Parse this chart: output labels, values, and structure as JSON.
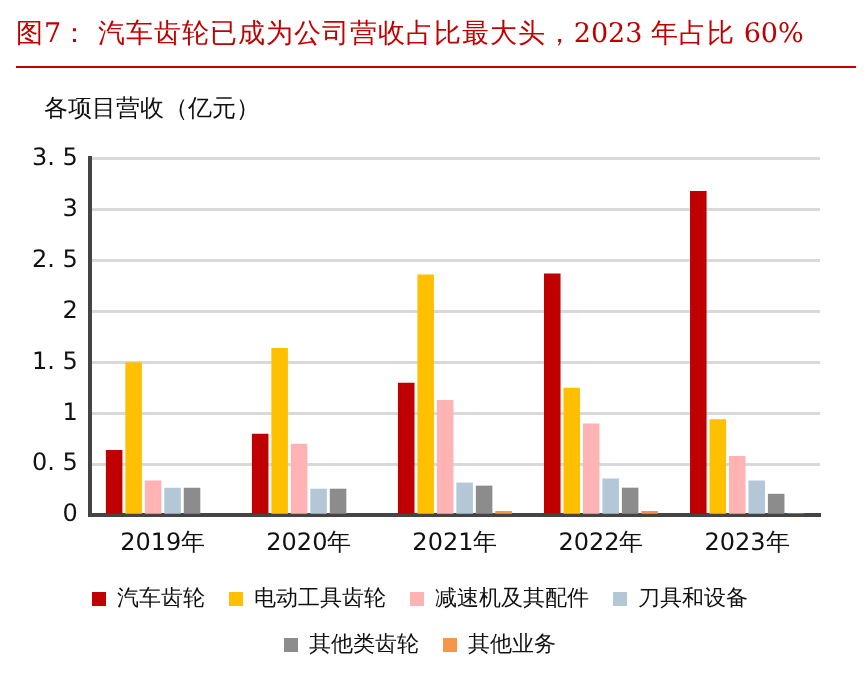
{
  "chart_data": {
    "type": "bar",
    "title": "图7：  汽车齿轮已成为公司营收占比最大头，2023 年占比 60%",
    "ylabel": "各项目营收（亿元）",
    "categories": [
      "2019年",
      "2020年",
      "2021年",
      "2022年",
      "2023年"
    ],
    "series": [
      {
        "name": "汽车齿轮",
        "color": "#c00000",
        "values": [
          0.64,
          0.8,
          1.3,
          2.37,
          3.18
        ]
      },
      {
        "name": "电动工具齿轮",
        "color": "#ffc000",
        "values": [
          1.5,
          1.64,
          2.36,
          1.25,
          0.94
        ]
      },
      {
        "name": "减速机及其配件",
        "color": "#ffb3b3",
        "values": [
          0.34,
          0.7,
          1.13,
          0.9,
          0.58
        ]
      },
      {
        "name": "刀具和设备",
        "color": "#b4c7d7",
        "values": [
          0.27,
          0.26,
          0.32,
          0.36,
          0.34
        ]
      },
      {
        "name": "其他类齿轮",
        "color": "#8c8c8c",
        "values": [
          0.27,
          0.26,
          0.29,
          0.27,
          0.21
        ]
      },
      {
        "name": "其他业务",
        "color": "#f79646",
        "values": [
          null,
          null,
          0.04,
          0.04,
          0.02
        ]
      }
    ],
    "ylim": [
      0,
      3.5
    ],
    "yticks": [
      0,
      0.5,
      1,
      1.5,
      2,
      2.5,
      3,
      3.5
    ],
    "grid": "y",
    "legend": "bottom"
  }
}
